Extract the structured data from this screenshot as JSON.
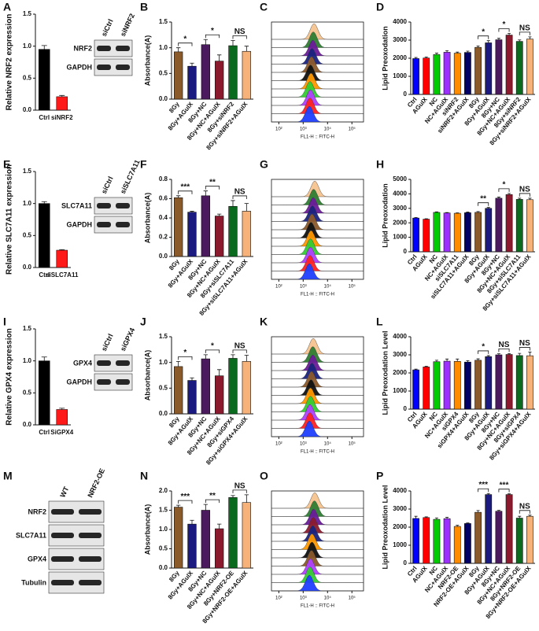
{
  "chart_data": [
    {
      "type": "bar",
      "panel": "A",
      "ylabel": "Relative NRF2 expression",
      "categories": [
        "Ctrl",
        "siNRF2"
      ],
      "values": [
        0.95,
        0.21
      ],
      "errors": [
        0.06,
        0.02
      ],
      "colors": [
        "#000000",
        "#ff1a1a"
      ],
      "ylim": [
        0,
        1.5
      ],
      "yticks": [
        {
          "value": 0,
          "label": "0.0"
        },
        {
          "value": 0.5,
          "label": "0.5"
        },
        {
          "value": 1,
          "label": "1.0"
        },
        {
          "value": 1.5,
          "label": "1.5"
        }
      ],
      "blot": {
        "lanes": [
          "siCtrl",
          "siNRF2"
        ],
        "rows": [
          "NRF2",
          "GAPDH"
        ]
      }
    },
    {
      "type": "bar",
      "panel": "B",
      "ylabel": "Absorbance(A)",
      "categories": [
        "8Gy",
        "8Gy+AGuIX",
        "8Gy+NC",
        "8Gy+NC+AGuIX",
        "8Gy+siNRF2",
        "8Gy+siNRF2+AGuIX"
      ],
      "values": [
        0.92,
        0.64,
        1.06,
        0.74,
        1.04,
        0.93
      ],
      "errors": [
        0.08,
        0.06,
        0.1,
        0.12,
        0.1,
        0.1
      ],
      "colors": [
        "#8b5a2b",
        "#1a1a80",
        "#4b1a5e",
        "#8b1a2e",
        "#0a6b1e",
        "#f7b27a"
      ],
      "ylim": [
        0,
        1.5
      ],
      "yticks": [
        {
          "value": 0,
          "label": "0.0"
        },
        {
          "value": 0.5,
          "label": "0.5"
        },
        {
          "value": 1,
          "label": "1.0"
        },
        {
          "value": 1.5,
          "label": "1.5"
        }
      ],
      "significance": [
        "*",
        "*",
        "NS"
      ]
    },
    {
      "type": "flow",
      "panel": "C",
      "xlabel": "FL1-H :: FITC-H",
      "xscale": "log",
      "xlim": [
        50,
        300000
      ],
      "xticks": [
        {
          "value": 100,
          "label": "10²"
        },
        {
          "value": 1000,
          "label": "10³"
        },
        {
          "value": 10000,
          "label": "10⁴"
        },
        {
          "value": 100000,
          "label": "10⁵"
        }
      ],
      "colors": [
        "#f6c38f",
        "#2e7d32",
        "#6a1b9a",
        "#1a237e",
        "#8b5a2b",
        "#111111",
        "#ff9800",
        "#33cc33",
        "#b040ff",
        "#ff2222",
        "#1f3fff"
      ],
      "peaks": [
        2800,
        2600,
        2500,
        2300,
        2200,
        2000,
        2100,
        1900,
        2000,
        1900,
        1800
      ]
    },
    {
      "type": "bar",
      "panel": "D",
      "ylabel": "Lipid Preoxodation",
      "categories": [
        "Ctrl",
        "AGuIX",
        "NC",
        "NC+AGuIX",
        "siNRF2",
        "siNRF2+AGuIX",
        "8Gy",
        "8Gy+AGuIX",
        "8Gy+NC",
        "8Gy+NC+AGuIX",
        "8Gy+siNRF2",
        "8Gy+siNRF2+AGuIX"
      ],
      "values": [
        1980,
        2010,
        2200,
        2330,
        2280,
        2320,
        2600,
        2850,
        3020,
        3280,
        2930,
        3060
      ],
      "errors": [
        60,
        60,
        80,
        90,
        60,
        70,
        80,
        120,
        80,
        90,
        80,
        120
      ],
      "colors": [
        "#0000ff",
        "#ff0000",
        "#00cc00",
        "#9b30ff",
        "#ff8c00",
        "#000066",
        "#8b5a2b",
        "#1a1a80",
        "#4b1a5e",
        "#8b1a2e",
        "#0a6b1e",
        "#f7b27a"
      ],
      "ylim": [
        0,
        4000
      ],
      "yticks": [
        0,
        1000,
        2000,
        3000,
        4000
      ],
      "significance": [
        "*",
        "*",
        "NS"
      ]
    },
    {
      "type": "bar",
      "panel": "E",
      "ylabel": "Relative SLC7A11 expression",
      "categories": [
        "Ctrl",
        "siSLC7A11"
      ],
      "values": [
        1.0,
        0.27
      ],
      "errors": [
        0.03,
        0.01
      ],
      "colors": [
        "#000000",
        "#ff1a1a"
      ],
      "ylim": [
        0,
        1.5
      ],
      "yticks": [
        {
          "value": 0,
          "label": "0.0"
        },
        {
          "value": 0.5,
          "label": "0.5"
        },
        {
          "value": 1,
          "label": "1.0"
        },
        {
          "value": 1.5,
          "label": "1.5"
        }
      ],
      "blot": {
        "lanes": [
          "siCtrl",
          "siSLC7A11"
        ],
        "rows": [
          "SLC7A11",
          "GAPDH"
        ]
      }
    },
    {
      "type": "bar",
      "panel": "F",
      "ylabel": "Absorbance(A)",
      "categories": [
        "8Gy",
        "8Gy+AGuIX",
        "8Gy+NC",
        "8Gy+NC+AGuIX",
        "8Gy+siSLC7A11",
        "8Gy+siSLC7A11+AGuIX"
      ],
      "values": [
        0.61,
        0.46,
        0.63,
        0.42,
        0.52,
        0.47
      ],
      "errors": [
        0.02,
        0.01,
        0.05,
        0.02,
        0.06,
        0.08
      ],
      "colors": [
        "#8b5a2b",
        "#1a1a80",
        "#4b1a5e",
        "#8b1a2e",
        "#0a6b1e",
        "#f7b27a"
      ],
      "ylim": [
        0,
        0.8
      ],
      "yticks": [
        {
          "value": 0,
          "label": "0.0"
        },
        {
          "value": 0.2,
          "label": "0.2"
        },
        {
          "value": 0.4,
          "label": "0.4"
        },
        {
          "value": 0.6,
          "label": "0.6"
        },
        {
          "value": 0.8,
          "label": "0.8"
        }
      ],
      "significance": [
        "***",
        "**",
        "NS"
      ]
    },
    {
      "type": "flow",
      "panel": "G",
      "xlabel": "FL1-H :: FITC-H",
      "xscale": "log",
      "xlim": [
        50,
        300000
      ],
      "xticks": [
        {
          "value": 100,
          "label": "10²"
        },
        {
          "value": 1000,
          "label": "10³"
        },
        {
          "value": 10000,
          "label": "10⁴"
        },
        {
          "value": 100000,
          "label": "10⁵"
        }
      ],
      "colors": [
        "#f6c38f",
        "#2e7d32",
        "#6a1b9a",
        "#1a237e",
        "#8b5a2b",
        "#111111",
        "#ff9800",
        "#33cc33",
        "#b040ff",
        "#ff2222",
        "#1f3fff"
      ],
      "peaks": [
        3000,
        2700,
        2600,
        2400,
        2300,
        2100,
        2100,
        2000,
        2000,
        1900,
        1800
      ]
    },
    {
      "type": "bar",
      "panel": "H",
      "ylabel": "Lipid Preoxodation",
      "categories": [
        "Ctrl",
        "AGuIX",
        "NC",
        "NC+AGuIX",
        "siSLC7A11",
        "siSLC7A11+AGuIX",
        "8Gy",
        "8Gy+AGuIX",
        "8Gy+NC",
        "8Gy+NC+AGuIX",
        "8Gy+siSLC7A11",
        "8Gy+siSLC7A11+AGuIX"
      ],
      "values": [
        2330,
        2250,
        2720,
        2680,
        2660,
        2700,
        2720,
        3000,
        3700,
        3950,
        3620,
        3600
      ],
      "errors": [
        30,
        30,
        40,
        30,
        30,
        40,
        60,
        60,
        80,
        80,
        80,
        100
      ],
      "colors": [
        "#0000ff",
        "#ff0000",
        "#00cc00",
        "#9b30ff",
        "#ff8c00",
        "#000066",
        "#8b5a2b",
        "#1a1a80",
        "#4b1a5e",
        "#8b1a2e",
        "#0a6b1e",
        "#f7b27a"
      ],
      "ylim": [
        0,
        5000
      ],
      "yticks": [
        0,
        1000,
        2000,
        3000,
        4000,
        5000
      ],
      "significance": [
        "**",
        "*",
        "NS"
      ]
    },
    {
      "type": "bar",
      "panel": "I",
      "ylabel": "Relative GPX4 expression",
      "categories": [
        "Ctrl",
        "SiGPX4"
      ],
      "values": [
        1.0,
        0.24
      ],
      "errors": [
        0.06,
        0.02
      ],
      "colors": [
        "#000000",
        "#ff1a1a"
      ],
      "ylim": [
        0,
        1.5
      ],
      "yticks": [
        {
          "value": 0,
          "label": "0.0"
        },
        {
          "value": 0.5,
          "label": "0.5"
        },
        {
          "value": 1,
          "label": "1.0"
        },
        {
          "value": 1.5,
          "label": "1.5"
        }
      ],
      "blot": {
        "lanes": [
          "siCtrl",
          "siGPX4"
        ],
        "rows": [
          "GPX4",
          "GAPDH"
        ]
      }
    },
    {
      "type": "bar",
      "panel": "J",
      "ylabel": "Absorbance(A)",
      "categories": [
        "8Gy",
        "8Gy+AGuIX",
        "8Gy+NC",
        "8Gy+NC+AGuIX",
        "8Gy+siGPX4",
        "8Gy+siGPX4+AGuIX"
      ],
      "values": [
        0.92,
        0.65,
        1.07,
        0.74,
        1.08,
        1.02
      ],
      "errors": [
        0.1,
        0.05,
        0.08,
        0.12,
        0.07,
        0.12
      ],
      "colors": [
        "#8b5a2b",
        "#1a1a80",
        "#4b1a5e",
        "#8b1a2e",
        "#0a6b1e",
        "#f7b27a"
      ],
      "ylim": [
        0,
        1.5
      ],
      "yticks": [
        {
          "value": 0,
          "label": "0.0"
        },
        {
          "value": 0.5,
          "label": "0.5"
        },
        {
          "value": 1,
          "label": "1.0"
        },
        {
          "value": 1.5,
          "label": "1.5"
        }
      ],
      "significance": [
        "*",
        "*",
        "NS"
      ]
    },
    {
      "type": "flow",
      "panel": "K",
      "xlabel": "FL1-H :: FITC-H",
      "xscale": "log",
      "xlim": [
        50,
        300000
      ],
      "xticks": [
        {
          "value": 100,
          "label": "10²"
        },
        {
          "value": 1000,
          "label": "10³"
        },
        {
          "value": 10000,
          "label": "10⁴"
        },
        {
          "value": 100000,
          "label": "10⁵"
        }
      ],
      "colors": [
        "#f6c38f",
        "#2e7d32",
        "#6a1b9a",
        "#1a237e",
        "#8b5a2b",
        "#111111",
        "#ff9800",
        "#33cc33",
        "#b040ff",
        "#ff2222",
        "#1f3fff"
      ],
      "peaks": [
        2600,
        2500,
        2500,
        2300,
        2200,
        2100,
        2000,
        2000,
        1900,
        1900,
        1800
      ]
    },
    {
      "type": "bar",
      "panel": "L",
      "ylabel": "Lipid Preoxodation Level",
      "categories": [
        "Ctrl",
        "AGuIX",
        "NC",
        "NC+AGuIX",
        "siGPX4",
        "siGPX4+AGuIX",
        "8Gy",
        "8Gy+AGuIX",
        "8Gy+NC",
        "8Gy+NC+AGuIX",
        "8Gy+siGPX4",
        "8Gy+siGPX4+AGuIX"
      ],
      "values": [
        2170,
        2330,
        2620,
        2650,
        2640,
        2600,
        2700,
        2900,
        3000,
        3020,
        2960,
        2950
      ],
      "errors": [
        40,
        40,
        80,
        120,
        130,
        80,
        80,
        60,
        60,
        50,
        120,
        200
      ],
      "colors": [
        "#0000ff",
        "#ff0000",
        "#00cc00",
        "#9b30ff",
        "#ff8c00",
        "#000066",
        "#8b5a2b",
        "#1a1a80",
        "#4b1a5e",
        "#8b1a2e",
        "#0a6b1e",
        "#f7b27a"
      ],
      "ylim": [
        0,
        4000
      ],
      "yticks": [
        0,
        1000,
        2000,
        3000,
        4000
      ],
      "significance": [
        "*",
        "NS",
        "NS"
      ]
    },
    {
      "type": "blot",
      "panel": "M",
      "blot": {
        "lanes": [
          "WT",
          "NRF2-OE"
        ],
        "rows": [
          "NRF2",
          "SLC7A11",
          "GPX4",
          "Tubulin"
        ]
      }
    },
    {
      "type": "bar",
      "panel": "N",
      "ylabel": "Absorbance(A)",
      "categories": [
        "8Gy",
        "8Gy+AGuIX",
        "8Gy+NC",
        "8Gy+NC+AGuIX",
        "8Gy+NRF2-OE",
        "8Gy+NRF2-OE+AGuIX"
      ],
      "values": [
        1.58,
        1.14,
        1.5,
        1.02,
        1.83,
        1.7
      ],
      "errors": [
        0.05,
        0.1,
        0.15,
        0.12,
        0.05,
        0.2
      ],
      "colors": [
        "#8b5a2b",
        "#1a1a80",
        "#4b1a5e",
        "#8b1a2e",
        "#0a6b1e",
        "#f7b27a"
      ],
      "ylim": [
        0,
        2
      ],
      "yticks": [
        {
          "value": 0,
          "label": "0.0"
        },
        {
          "value": 0.5,
          "label": "0.5"
        },
        {
          "value": 1,
          "label": "1.0"
        },
        {
          "value": 1.5,
          "label": "1.5"
        },
        {
          "value": 2,
          "label": "2.0"
        }
      ],
      "significance": [
        "***",
        "**",
        "NS"
      ]
    },
    {
      "type": "flow",
      "panel": "O",
      "xlabel": "FL1-H :: FITC-H",
      "xscale": "log",
      "xlim": [
        50,
        300000
      ],
      "xticks": [
        {
          "value": 100,
          "label": "10²"
        },
        {
          "value": 1000,
          "label": "10³"
        },
        {
          "value": 10000,
          "label": "10⁴"
        },
        {
          "value": 100000,
          "label": "10⁵"
        }
      ],
      "colors": [
        "#f6c38f",
        "#2e7d32",
        "#6a1b9a",
        "#8b1a2e",
        "#1a237e",
        "#ff9800",
        "#111111",
        "#8b5a2b",
        "#b040ff",
        "#33cc33",
        "#1f3fff"
      ],
      "peaks": [
        3000,
        2900,
        2700,
        2600,
        2500,
        2300,
        2300,
        2200,
        2000,
        1900,
        1800
      ]
    },
    {
      "type": "bar",
      "panel": "P",
      "ylabel": "Lipid Preoxodation Level",
      "categories": [
        "Ctrl",
        "AGuIX",
        "NC",
        "NC+AGuIX",
        "NRF2-OE",
        "NRF2-OE+AGuIX",
        "8Gy",
        "8Gy+AGuIX",
        "8Gy+NC",
        "8Gy+NC+AGuIX",
        "8Gy+NRF2-OE",
        "8Gy+NRF2-OE+AGuIX"
      ],
      "values": [
        2480,
        2530,
        2430,
        2470,
        2040,
        2200,
        2820,
        3800,
        2880,
        3800,
        2500,
        2600
      ],
      "errors": [
        120,
        40,
        80,
        70,
        60,
        30,
        100,
        60,
        50,
        40,
        100,
        60
      ],
      "colors": [
        "#0000ff",
        "#ff0000",
        "#00cc00",
        "#9b30ff",
        "#ff8c00",
        "#000066",
        "#8b5a2b",
        "#1a1a80",
        "#4b1a5e",
        "#8b1a2e",
        "#0a6b1e",
        "#f7b27a"
      ],
      "ylim": [
        0,
        4000
      ],
      "yticks": [
        0,
        1000,
        2000,
        3000,
        4000
      ],
      "significance": [
        "***",
        "***",
        "NS"
      ]
    }
  ]
}
